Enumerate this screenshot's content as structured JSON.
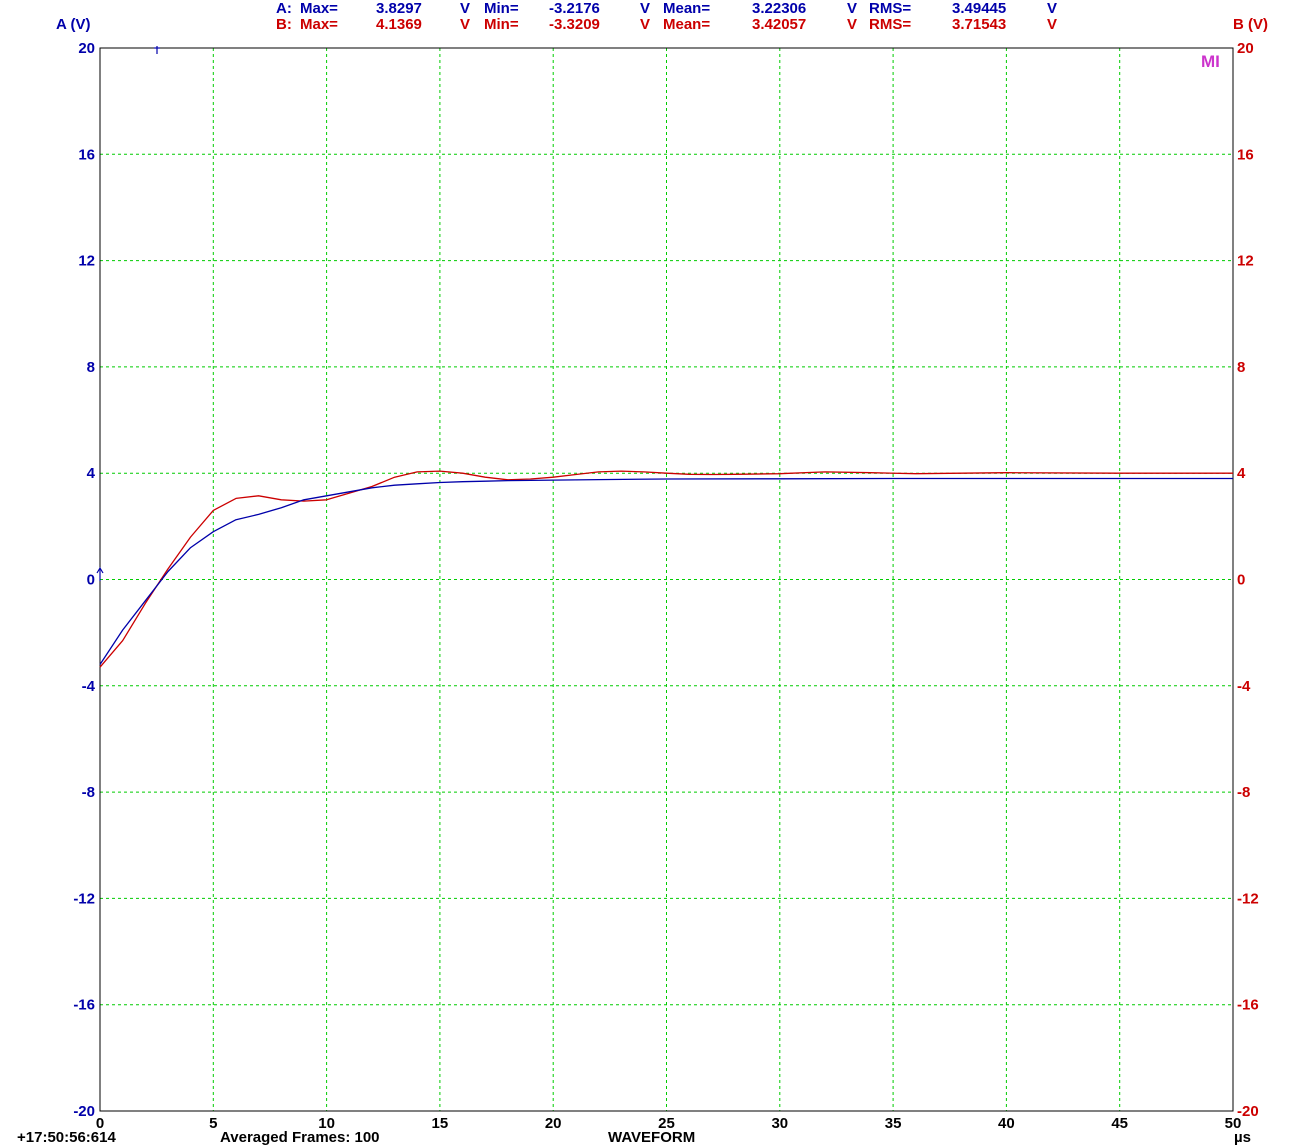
{
  "header": {
    "a": {
      "channel_label": "A:",
      "max_label": "Max=",
      "max_value": "3.8297",
      "max_unit": "V",
      "min_label": "Min=",
      "min_value": "-3.2176",
      "min_unit": "V",
      "mean_label": "Mean=",
      "mean_value": "3.22306",
      "mean_unit": "V",
      "rms_label": "RMS=",
      "rms_value": "3.49445",
      "rms_unit": "V"
    },
    "b": {
      "channel_label": "B:",
      "max_label": "Max=",
      "max_value": "4.1369",
      "max_unit": "V",
      "min_label": "Min=",
      "min_value": "-3.3209",
      "min_unit": "V",
      "mean_label": "Mean=",
      "mean_value": "3.42057",
      "mean_unit": "V",
      "rms_label": "RMS=",
      "rms_value": "3.71543",
      "rms_unit": "V"
    }
  },
  "footer": {
    "timestamp": "+17:50:56:614",
    "averaged_frames": "Averaged Frames: 100",
    "mode": "WAVEFORM"
  },
  "marker_text": "MI",
  "colors": {
    "channel_a": "#0000aa",
    "channel_b": "#cc0000",
    "grid": "#00cc00",
    "axis_text": "#000000",
    "marker": "#cc33cc"
  },
  "chart_data": {
    "type": "line",
    "xlabel": "µs",
    "ylabel_left": "A (V)",
    "ylabel_right": "B (V)",
    "xlim": [
      0,
      50
    ],
    "ylim": [
      -20,
      20
    ],
    "x_ticks": [
      "0",
      "5",
      "10",
      "15",
      "20",
      "25",
      "30",
      "35",
      "40",
      "45",
      "50"
    ],
    "y_ticks": [
      "20",
      "16",
      "12",
      "8",
      "4",
      "0",
      "-4",
      "-8",
      "-12",
      "-16",
      "-20"
    ],
    "grid": true,
    "series": [
      {
        "name": "A",
        "x": [
          0,
          1,
          2,
          3,
          4,
          5,
          6,
          7,
          8,
          9,
          10,
          11,
          12,
          13,
          14,
          15,
          16,
          17,
          18,
          20,
          22,
          25,
          30,
          35,
          40,
          45,
          50
        ],
        "y": [
          -3.2,
          -1.9,
          -0.8,
          0.3,
          1.2,
          1.8,
          2.25,
          2.45,
          2.7,
          3.0,
          3.15,
          3.3,
          3.45,
          3.55,
          3.6,
          3.65,
          3.68,
          3.7,
          3.72,
          3.74,
          3.76,
          3.78,
          3.79,
          3.8,
          3.8,
          3.8,
          3.8
        ]
      },
      {
        "name": "B",
        "x": [
          0,
          1,
          2,
          3,
          4,
          5,
          6,
          7,
          8,
          9,
          10,
          11,
          12,
          13,
          14,
          15,
          16,
          17,
          18,
          19,
          20,
          21,
          22,
          23,
          24,
          25,
          26,
          27,
          28,
          30,
          32,
          34,
          36,
          38,
          40,
          45,
          50
        ],
        "y": [
          -3.3,
          -2.3,
          -0.9,
          0.4,
          1.6,
          2.6,
          3.05,
          3.15,
          3.0,
          2.95,
          3.0,
          3.25,
          3.5,
          3.85,
          4.05,
          4.08,
          4.0,
          3.85,
          3.75,
          3.78,
          3.85,
          3.95,
          4.05,
          4.08,
          4.05,
          4.0,
          3.96,
          3.95,
          3.96,
          3.98,
          4.05,
          4.02,
          3.98,
          4.0,
          4.02,
          4.0,
          4.0
        ]
      }
    ]
  }
}
